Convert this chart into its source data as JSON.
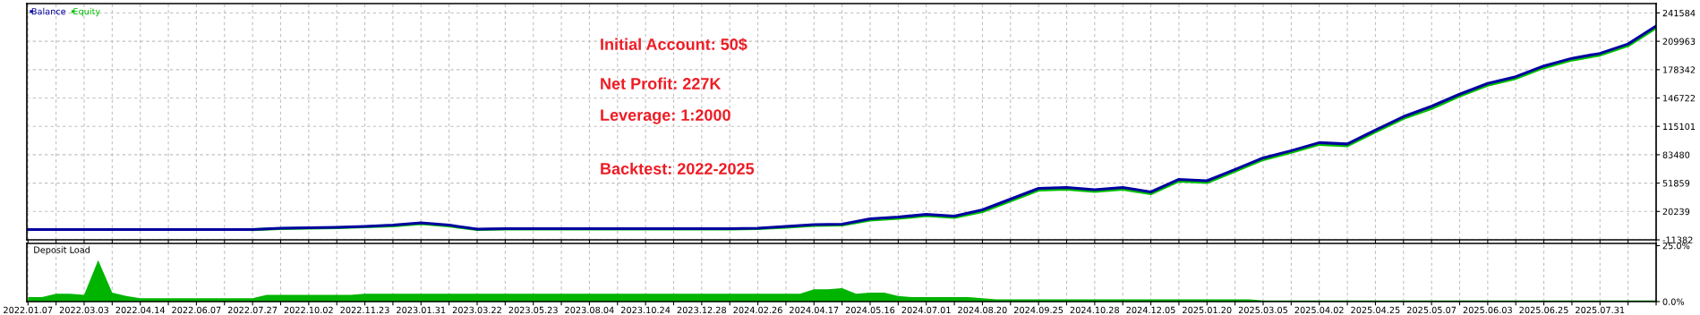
{
  "chart_data": [
    {
      "type": "line",
      "legend": "top left",
      "grid": true,
      "tick_labels": "y",
      "marker": "none",
      "line_style": "solid",
      "categories": [
        "2022.01.07",
        null,
        "2022.03.03",
        null,
        "2022.04.14",
        null,
        "2022.06.07",
        null,
        "2022.07.27",
        null,
        "2022.10.02",
        null,
        "2022.11.23",
        null,
        "2023.01.31",
        null,
        "2023.03.22",
        null,
        "2023.05.23",
        null,
        "2023.08.04",
        null,
        "2023.10.24",
        null,
        "2023.12.28",
        null,
        "2024.02.26",
        null,
        "2024.04.17",
        null,
        "2024.05.16",
        null,
        "2024.07.01",
        null,
        "2024.08.20",
        null,
        "2024.09.25",
        null,
        "2024.10.28",
        null,
        "2024.12.05",
        null,
        "2025.01.20",
        null,
        "2025.03.05",
        null,
        "2025.04.02",
        null,
        "2025.04.25",
        null,
        "2025.05.07",
        null,
        "2025.06.03",
        null,
        "2025.06.25",
        null,
        "2025.07.31",
        null,
        null
      ],
      "ylim": [
        -11382,
        252000
      ],
      "yticks": [
        -11382,
        20239,
        51859,
        83480,
        115101,
        146722,
        178342,
        209963,
        241584
      ],
      "annotations": [
        "Initial Account: 50$",
        "Net Profit: 227K",
        "Leverage: 1:2000",
        "Backtest: 2022-2025"
      ],
      "series": [
        {
          "name": "Equity",
          "color": "#00c000",
          "values": [
            null,
            null,
            null,
            null,
            null,
            null,
            null,
            null,
            0,
            1000,
            1500,
            2000,
            3000,
            4000,
            6500,
            4000,
            0,
            500,
            500,
            500,
            500,
            500,
            500,
            500,
            500,
            500,
            1000,
            2500,
            4500,
            5000,
            10500,
            12500,
            15500,
            13500,
            20000,
            32000,
            44000,
            45000,
            42500,
            45000,
            40000,
            54000,
            52500,
            65000,
            78000,
            86000,
            95000,
            93500,
            109000,
            124000,
            135000,
            149000,
            161000,
            168500,
            180500,
            189000,
            194500,
            205000,
            225000
          ]
        },
        {
          "name": "Balance",
          "color": "#0000a0",
          "values": [
            0,
            0,
            0,
            0,
            0,
            0,
            0,
            0,
            0,
            1500,
            2000,
            2500,
            3500,
            5000,
            7500,
            5000,
            500,
            1000,
            1000,
            1000,
            1000,
            1000,
            1000,
            1000,
            1000,
            1000,
            1500,
            3500,
            5500,
            6000,
            12000,
            14000,
            17000,
            15000,
            22000,
            34000,
            46000,
            47000,
            44500,
            47000,
            42000,
            56000,
            54500,
            67000,
            80000,
            88000,
            97000,
            95500,
            111000,
            126000,
            137500,
            151000,
            163000,
            170500,
            182500,
            191000,
            196500,
            207000,
            227000
          ]
        }
      ]
    },
    {
      "type": "area",
      "title": "Deposit Load",
      "grid": "x",
      "color": "#00b400",
      "categories": [
        "2022.01.07",
        null,
        null,
        null,
        "2022.03.03",
        null,
        null,
        null,
        "2022.04.14",
        null,
        null,
        null,
        "2022.06.07",
        null,
        null,
        null,
        "2022.07.27",
        null,
        null,
        null,
        "2022.10.02",
        null,
        null,
        null,
        "2022.11.23",
        null,
        null,
        null,
        "2023.01.31",
        null,
        null,
        null,
        "2023.03.22",
        null,
        null,
        null,
        "2023.05.23",
        null,
        null,
        null,
        "2023.08.04",
        null,
        null,
        null,
        "2023.10.24",
        null,
        null,
        null,
        "2023.12.28",
        null,
        null,
        null,
        "2024.02.26",
        null,
        null,
        null,
        "2024.04.17",
        null,
        null,
        null,
        "2024.05.16",
        null,
        null,
        null,
        "2024.07.01",
        null,
        null,
        null,
        "2024.08.20",
        null,
        null,
        null,
        "2024.09.25",
        null,
        null,
        null,
        "2024.10.28",
        null,
        null,
        null,
        "2024.12.05",
        null,
        null,
        null,
        "2025.01.20",
        null,
        null,
        null,
        "2025.03.05",
        null,
        null,
        null,
        "2025.04.02",
        null,
        null,
        null,
        "2025.04.25",
        null,
        null,
        null,
        "2025.05.07",
        null,
        null,
        null,
        "2025.06.03",
        null,
        null,
        null,
        "2025.06.25",
        null,
        null,
        null,
        "2025.07.31",
        null,
        null,
        null,
        null
      ],
      "ylim": [
        0,
        26
      ],
      "yticks": [
        {
          "value": 0,
          "label": "0.0%"
        },
        {
          "value": 25,
          "label": "25.0%"
        }
      ],
      "values": [
        2,
        2,
        3.5,
        3.5,
        3,
        18.5,
        4,
        2.5,
        1.5,
        1.5,
        1.5,
        1.5,
        1.5,
        1.5,
        1.5,
        1.5,
        1.5,
        3,
        3,
        3,
        3,
        3,
        3,
        3,
        3.5,
        3.5,
        3.5,
        3.5,
        3.5,
        3.5,
        3.5,
        3.5,
        3.5,
        3.5,
        3.5,
        3.5,
        3.5,
        3.5,
        3.5,
        3.5,
        3.5,
        3.5,
        3.5,
        3.5,
        3.5,
        3.5,
        3.5,
        3.5,
        3.5,
        3.5,
        3.5,
        3.5,
        3.5,
        3.5,
        3.5,
        3.5,
        5.5,
        5.5,
        6,
        3.5,
        4,
        4,
        2.5,
        2,
        2,
        2,
        2,
        2,
        1.5,
        1,
        1,
        1,
        1,
        1,
        1,
        1,
        1,
        1,
        1,
        1,
        1,
        1,
        1,
        1,
        1,
        1,
        1,
        1,
        0.5,
        0.5,
        0.5,
        0.5,
        0.5,
        0.5,
        0.5,
        0.5,
        0.5,
        0.5,
        0.5,
        0.5,
        0.5,
        0.5,
        0.5,
        0.5,
        0.5,
        0.5,
        0.5,
        0.5,
        0.5,
        0.5,
        0.5,
        0.5,
        0.5,
        0.5,
        0.5,
        0.5,
        0.5
      ]
    }
  ]
}
